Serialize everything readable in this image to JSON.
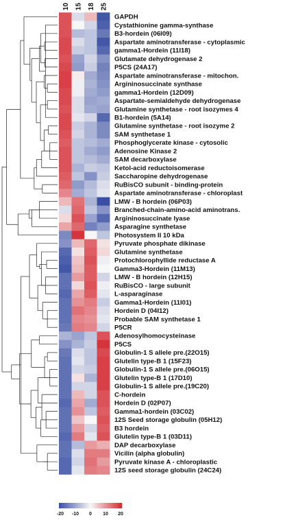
{
  "chart_data": {
    "type": "heatmap",
    "columns": [
      "10",
      "15",
      "18",
      "25"
    ],
    "rows": [
      {
        "label": "GAPDH",
        "values": [
          16,
          -3,
          6,
          -19
        ]
      },
      {
        "label": "Cystathionine gamma-synthase",
        "values": [
          16,
          0,
          -4,
          -18
        ]
      },
      {
        "label": "B3-hordein (06I09)",
        "values": [
          16,
          -7,
          -6,
          -15
        ]
      },
      {
        "label": "Aspartate aminotransferase - cytoplasmic",
        "values": [
          17,
          -3,
          -6,
          -19
        ]
      },
      {
        "label": "gamma1-Hordein (11I18)",
        "values": [
          17,
          -5,
          -6,
          -17
        ]
      },
      {
        "label": "Glutamate dehydrogenase 2",
        "values": [
          16,
          -10,
          -4,
          -12
        ]
      },
      {
        "label": "P5CS (24A17)",
        "values": [
          17,
          -11,
          -5,
          -14
        ]
      },
      {
        "label": "Aspartate aminotransferase - mitochon.",
        "values": [
          18,
          1,
          -9,
          -13
        ]
      },
      {
        "label": "Argininosuccinate synthase",
        "values": [
          18,
          -1,
          -8,
          -12
        ]
      },
      {
        "label": "gamma1-Hordein (12D09)",
        "values": [
          17,
          -1,
          -9,
          -11
        ]
      },
      {
        "label": "Aspartate-semialdehyde dehydrogenase",
        "values": [
          17,
          -3,
          -10,
          -9
        ]
      },
      {
        "label": "Glutamine synthetase - root isozymes 4",
        "values": [
          16,
          -3,
          -9,
          -10
        ]
      },
      {
        "label": "B1-hordein (5A14)",
        "values": [
          17,
          -2,
          -4,
          -17
        ]
      },
      {
        "label": "Glutamine synthetase - root isozyme 2",
        "values": [
          17,
          -5,
          -8,
          -13
        ]
      },
      {
        "label": "SAM synthetase 1",
        "values": [
          16,
          -4,
          -8,
          -13
        ]
      },
      {
        "label": "Phosphoglycerate kinase - cytosolic",
        "values": [
          15,
          -6,
          -7,
          -9
        ]
      },
      {
        "label": "Adenosine Kinase 2",
        "values": [
          16,
          -6,
          -9,
          -11
        ]
      },
      {
        "label": "SAM decarboxylase",
        "values": [
          16,
          -6,
          -7,
          -9
        ]
      },
      {
        "label": "Ketol-acid reductoisomerase",
        "values": [
          16,
          -8,
          -5,
          -6
        ]
      },
      {
        "label": "Saccharopine dehydrogenase",
        "values": [
          15,
          -6,
          -12,
          -5
        ]
      },
      {
        "label": "RuBisCO subunit - binding-protein",
        "values": [
          14,
          -11,
          -7,
          -3
        ]
      },
      {
        "label": "Aspartate aminotransferase - chloroplast",
        "values": [
          11,
          -9,
          -6,
          -2
        ]
      },
      {
        "label": "LMW - B hordein (06P03)",
        "values": [
          6,
          13,
          -8,
          -20
        ]
      },
      {
        "label": "Branched-chain-amino-acid aminotrans.",
        "values": [
          -3,
          14,
          -6,
          -12
        ]
      },
      {
        "label": "Argininosuccinate lyase",
        "values": [
          3,
          16,
          -10,
          -17
        ]
      },
      {
        "label": "Asparagine synthetase",
        "values": [
          8,
          14,
          -14,
          -11
        ]
      },
      {
        "label": "Photosystem II 10 kDa",
        "values": [
          -13,
          19,
          0,
          -6
        ]
      },
      {
        "label": "Pyruvate phosphate dikinase",
        "values": [
          -12,
          6,
          14,
          2
        ]
      },
      {
        "label": "Glutamine synthetase",
        "values": [
          -17,
          2,
          15,
          3
        ]
      },
      {
        "label": "Protochlorophyllide reductase A",
        "values": [
          -18,
          5,
          16,
          -1
        ]
      },
      {
        "label": "Gamma3-Hordein (11M13)",
        "values": [
          -19,
          6,
          15,
          0
        ]
      },
      {
        "label": "LMW - B hordein (12H15)",
        "values": [
          -16,
          9,
          15,
          -4
        ]
      },
      {
        "label": "RuBisCO - large subunit",
        "values": [
          -16,
          3,
          16,
          -1
        ]
      },
      {
        "label": "L-asparaginase",
        "values": [
          -17,
          8,
          15,
          -2
        ]
      },
      {
        "label": "Gamma1-Hordein (11I01)",
        "values": [
          -16,
          10,
          12,
          -5
        ]
      },
      {
        "label": "Hordein D (04I12)",
        "values": [
          -16,
          13,
          11,
          -3
        ]
      },
      {
        "label": "Probable SAM synthetase 1",
        "values": [
          -16,
          11,
          10,
          -2
        ]
      },
      {
        "label": "P5CR",
        "values": [
          -15,
          12,
          11,
          -4
        ]
      },
      {
        "label": "Adenosylhomocysteinase",
        "values": [
          -8,
          -10,
          -6,
          16
        ]
      },
      {
        "label": "P5CS",
        "values": [
          -12,
          -8,
          -5,
          19
        ]
      },
      {
        "label": "Globulin-1 S allele pre.(22O15)",
        "values": [
          -15,
          -3,
          -6,
          17
        ]
      },
      {
        "label": "Glutelin type-B 1 (15F23)",
        "values": [
          -16,
          -2,
          -6,
          18
        ]
      },
      {
        "label": "Globulin-1 S allele pre.(06O15)",
        "values": [
          -16,
          -4,
          -5,
          18
        ]
      },
      {
        "label": "Glutelin type-B 1 (17D10)",
        "values": [
          -16,
          2,
          -8,
          18
        ]
      },
      {
        "label": "Globulin-1 S allele pre.(19C20)",
        "values": [
          -16,
          -4,
          -4,
          18
        ]
      },
      {
        "label": "C-hordein",
        "values": [
          -16,
          6,
          -4,
          16
        ]
      },
      {
        "label": "Hordein D (02P07)",
        "values": [
          -17,
          8,
          -9,
          16
        ]
      },
      {
        "label": "Gamma1-hordein (03C02)",
        "values": [
          -16,
          10,
          -6,
          15
        ]
      },
      {
        "label": "12S Seed storage globulin (05H12)",
        "values": [
          -16,
          5,
          0,
          16
        ]
      },
      {
        "label": "B3 hordein",
        "values": [
          -16,
          9,
          -4,
          15
        ]
      },
      {
        "label": "Glutelin type-B 1 (03D11)",
        "values": [
          -17,
          12,
          -2,
          16
        ]
      },
      {
        "label": "DAP decarboxylase",
        "values": [
          -16,
          -7,
          9,
          7
        ]
      },
      {
        "label": "Vicilin (alpha globulin)",
        "values": [
          -16,
          -3,
          12,
          12
        ]
      },
      {
        "label": "Pyruvate kinase A - chloroplastic",
        "values": [
          -17,
          -4,
          13,
          9
        ]
      },
      {
        "label": "12S seed storage globulin (24C24)",
        "values": [
          -17,
          -2,
          12,
          11
        ]
      }
    ],
    "color_scale": {
      "min": -20,
      "max": 20,
      "colors": {
        "low": "#3a4fa3",
        "mid": "#f7f7f7",
        "high": "#d42a32"
      },
      "tick_labels": [
        "-20",
        "-10",
        "0",
        "10",
        "20"
      ]
    },
    "dendrogram": "left"
  }
}
